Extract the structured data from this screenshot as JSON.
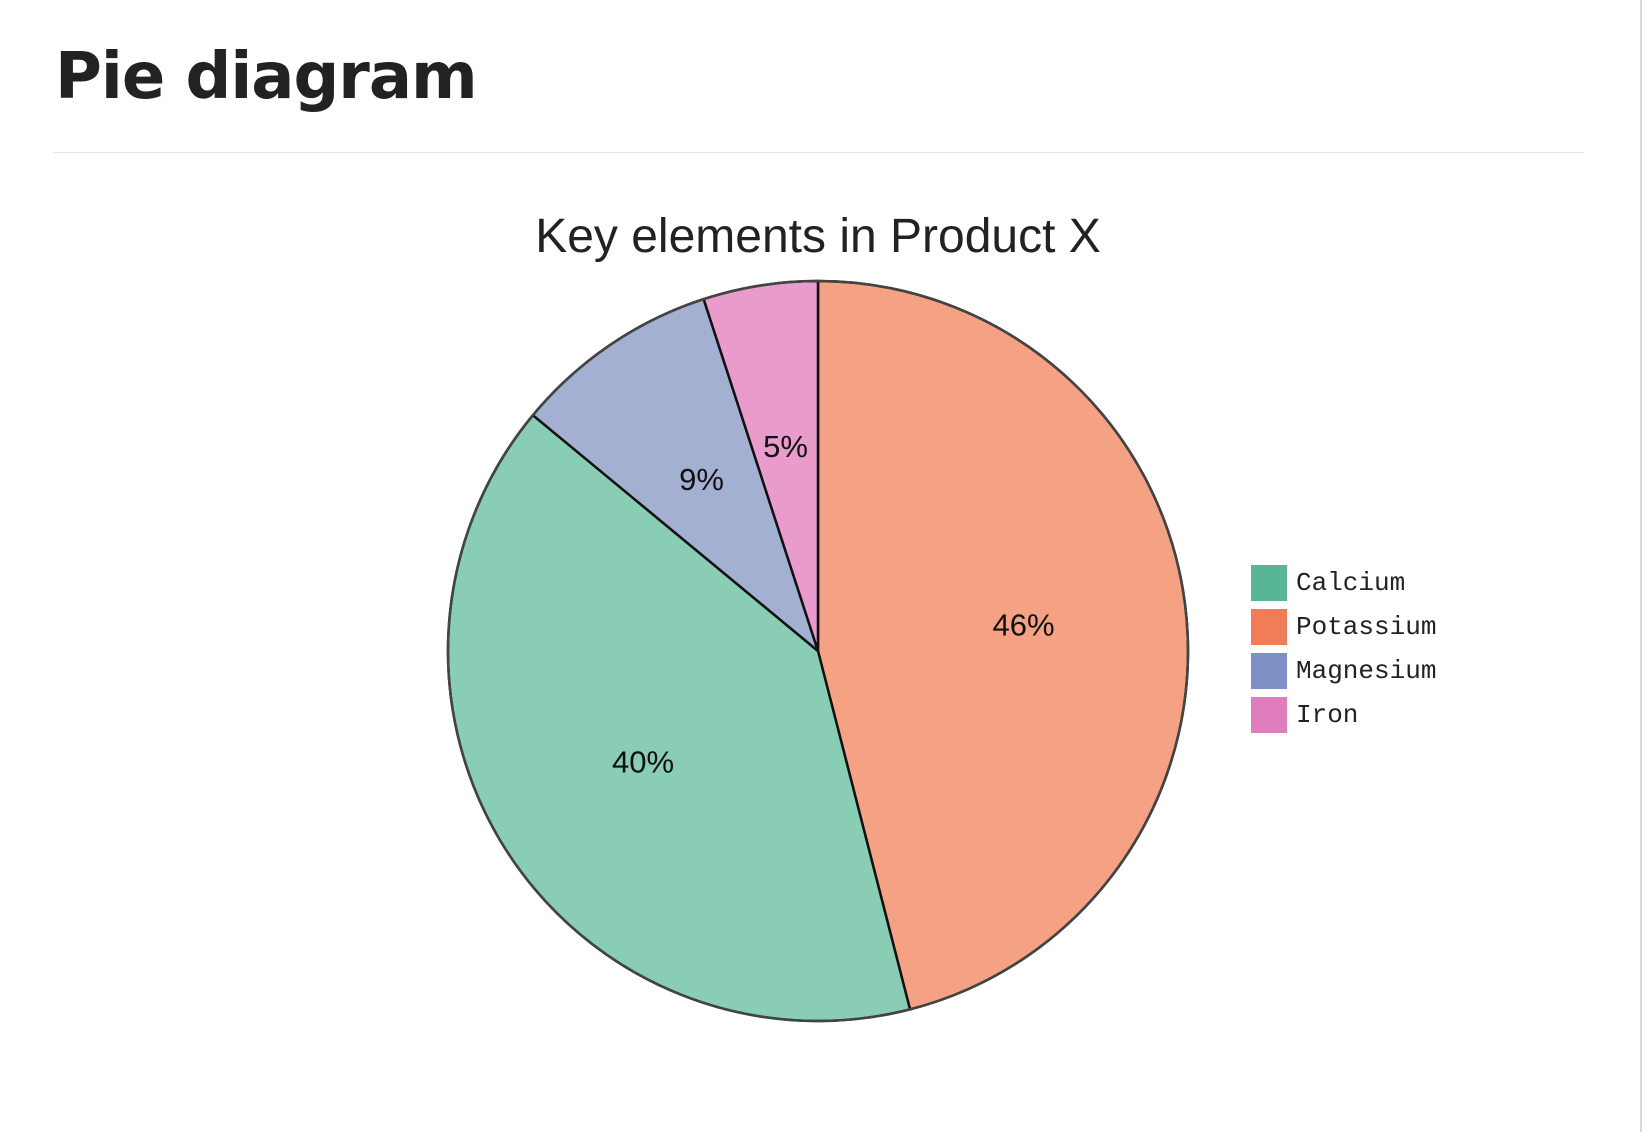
{
  "page": {
    "heading": "Pie diagram"
  },
  "chart_data": {
    "type": "pie",
    "title": "Key elements in Product X",
    "categories": [
      "Calcium",
      "Potassium",
      "Magnesium",
      "Iron"
    ],
    "values": [
      40,
      46,
      9,
      5
    ],
    "value_labels": [
      "40%",
      "46%",
      "9%",
      "5%"
    ],
    "slice_colors": [
      "#88cdb4",
      "#f4a283",
      "#a3b0d2",
      "#e99bcb"
    ],
    "legend_colors": [
      "#58b595",
      "#f07d57",
      "#7d8fc4",
      "#e07dbc"
    ],
    "legend": {
      "placement": "right",
      "entries": [
        "Calcium",
        "Potassium",
        "Magnesium",
        "Iron"
      ]
    },
    "start_angle": "12 o'clock",
    "direction": "clockwise",
    "slice_order": [
      "Potassium",
      "Calcium",
      "Magnesium",
      "Iron"
    ]
  }
}
